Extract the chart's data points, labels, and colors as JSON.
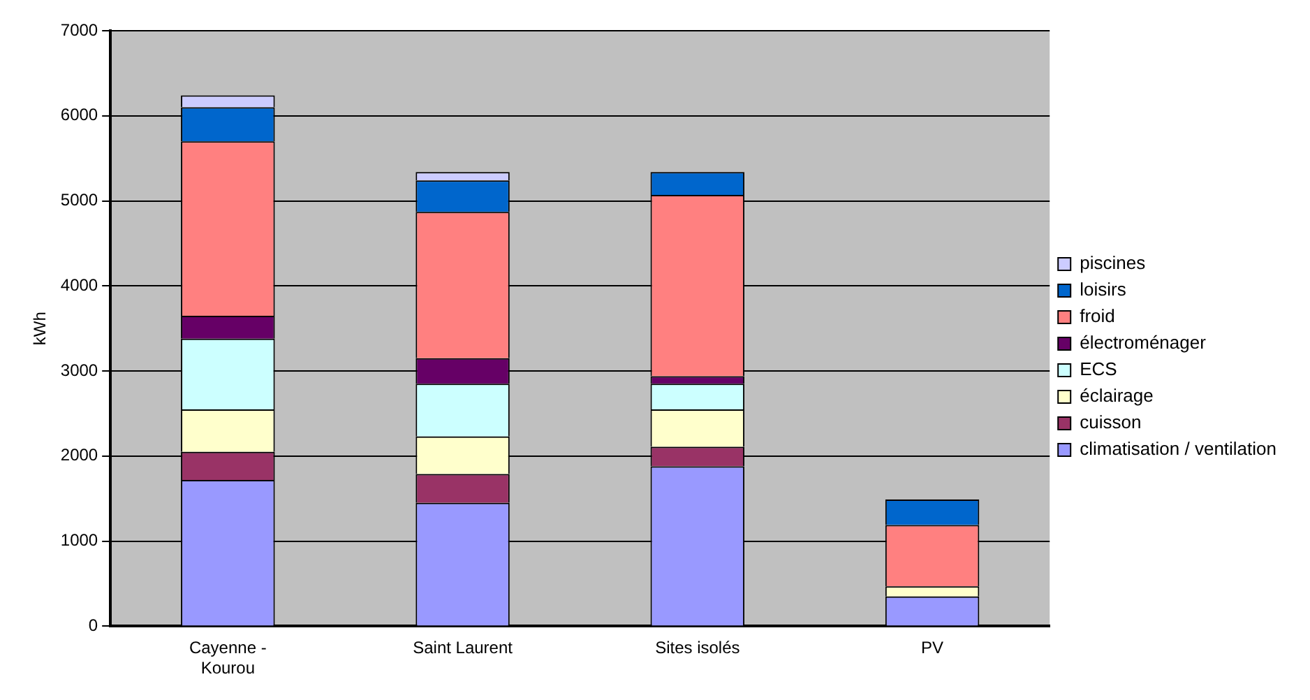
{
  "chart_data": {
    "type": "bar",
    "stacked": true,
    "ylabel": "kWh",
    "categories": [
      "Cayenne - Kourou",
      "Saint Laurent",
      "Sites isolés",
      "PV"
    ],
    "series": [
      {
        "name": "climatisation / ventilation",
        "color": "#9999ff",
        "values": [
          1720,
          1450,
          1880,
          350
        ]
      },
      {
        "name": "cuisson",
        "color": "#993366",
        "values": [
          330,
          340,
          230,
          0
        ]
      },
      {
        "name": "éclairage",
        "color": "#ffffcc",
        "values": [
          500,
          440,
          440,
          120
        ]
      },
      {
        "name": "ECS",
        "color": "#ccffff",
        "values": [
          830,
          620,
          300,
          0
        ]
      },
      {
        "name": "électroménager",
        "color": "#660066",
        "values": [
          270,
          300,
          90,
          0
        ]
      },
      {
        "name": "froid",
        "color": "#ff8080",
        "values": [
          2050,
          1720,
          2130,
          720
        ]
      },
      {
        "name": "loisirs",
        "color": "#0066cc",
        "values": [
          400,
          370,
          270,
          300
        ]
      },
      {
        "name": "piscines",
        "color": "#ccccff",
        "values": [
          140,
          100,
          0,
          0
        ]
      }
    ],
    "ylim": [
      0,
      7000
    ],
    "yticks": [
      0,
      1000,
      2000,
      3000,
      4000,
      5000,
      6000,
      7000
    ],
    "grid": "y",
    "legend": "right"
  }
}
